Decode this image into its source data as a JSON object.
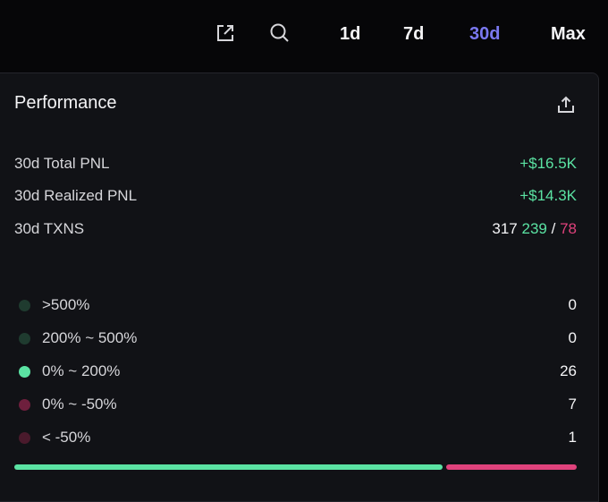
{
  "header": {
    "icons": [
      "external-link-icon",
      "search-icon"
    ],
    "ranges": [
      {
        "label": "1d",
        "active": false
      },
      {
        "label": "7d",
        "active": false
      },
      {
        "label": "30d",
        "active": true
      },
      {
        "label": "Max",
        "active": false
      }
    ]
  },
  "panel": {
    "title": "Performance",
    "stats": {
      "total_pnl": {
        "label": "30d Total PNL",
        "value": "+$16.5K"
      },
      "realized_pnl": {
        "label": "30d Realized PNL",
        "value": "+$14.3K"
      },
      "txns": {
        "label": "30d TXNS",
        "total": "317",
        "buys": "239",
        "separator": "/",
        "sells": "78"
      }
    },
    "distribution": [
      {
        "label": ">500%",
        "count": "0",
        "color": "#1f3b2f"
      },
      {
        "label": "200% ~ 500%",
        "count": "0",
        "color": "#1f3b2f"
      },
      {
        "label": "0% ~ 200%",
        "count": "26",
        "color": "#5be3a3"
      },
      {
        "label": "0% ~ -50%",
        "count": "7",
        "color": "#6e1f3d"
      },
      {
        "label": "< -50%",
        "count": "1",
        "color": "#4a1a2c"
      }
    ],
    "ratio_bar": {
      "win_fraction": 0.765,
      "win_color": "#5be3a3",
      "loss_color": "#e0427c"
    }
  }
}
